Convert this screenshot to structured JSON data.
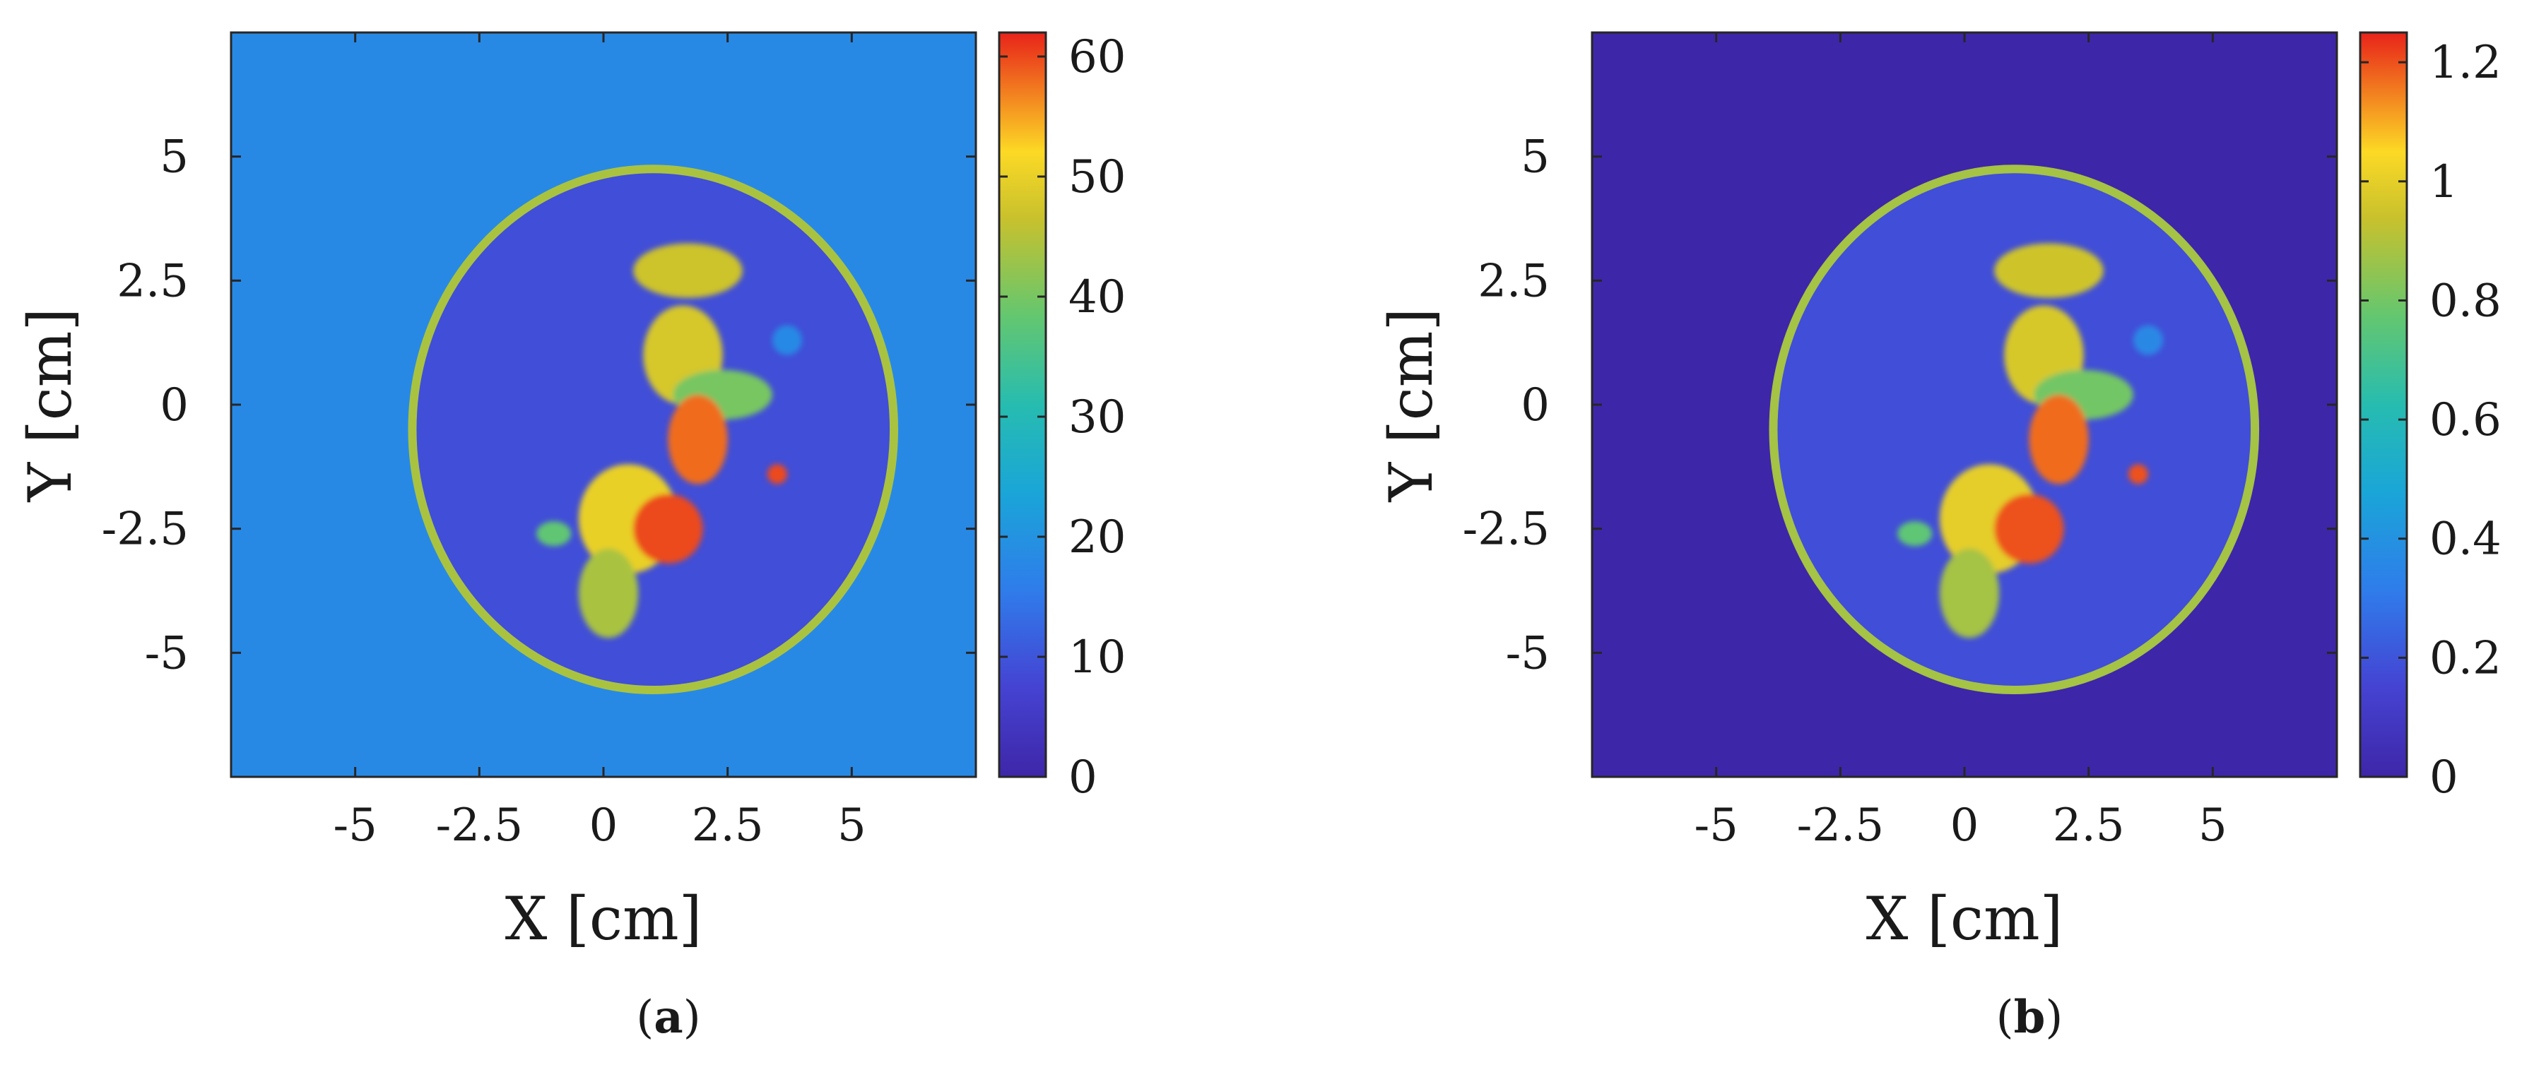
{
  "figure": {
    "panels": [
      {
        "label_open": "(",
        "label_letter": "a",
        "label_close": ")"
      },
      {
        "label_open": "(",
        "label_letter": "b",
        "label_close": ")"
      }
    ]
  },
  "chart_data": [
    {
      "type": "heatmap",
      "title": "",
      "xlabel": "X [cm]",
      "ylabel": "Y [cm]",
      "xlim": [
        -7.5,
        7.5
      ],
      "ylim": [
        -7.5,
        7.5
      ],
      "xticks": [
        -5,
        -2.5,
        0,
        2.5,
        5
      ],
      "xtick_labels": [
        "-5",
        "-2.5",
        "0",
        "2.5",
        "5"
      ],
      "yticks": [
        5,
        2.5,
        0,
        -2.5,
        -5
      ],
      "ytick_labels": [
        "5",
        "2.5",
        "0",
        "-2.5",
        "-5"
      ],
      "colormap": "parula",
      "background_value": 18,
      "colorbar": {
        "range": [
          0,
          62
        ],
        "ticks": [
          0,
          10,
          20,
          30,
          40,
          50,
          60
        ],
        "tick_labels": [
          "0",
          "10",
          "20",
          "30",
          "40",
          "50",
          "60"
        ]
      },
      "structures": {
        "ring": {
          "cx": 1.0,
          "cy": -0.5,
          "rx": 4.85,
          "ry": 5.25,
          "value": 44
        },
        "interior_value": 9,
        "blobs": [
          {
            "x": 1.7,
            "y": 2.7,
            "rx": 1.1,
            "ry": 0.55,
            "value": 47
          },
          {
            "x": 1.6,
            "y": 1.0,
            "rx": 0.8,
            "ry": 1.0,
            "value": 48
          },
          {
            "x": 2.4,
            "y": 0.2,
            "rx": 1.0,
            "ry": 0.5,
            "value": 40
          },
          {
            "x": 1.9,
            "y": -0.7,
            "rx": 0.6,
            "ry": 0.9,
            "value": 58
          },
          {
            "x": 0.5,
            "y": -2.3,
            "rx": 1.0,
            "ry": 1.1,
            "value": 50
          },
          {
            "x": 1.3,
            "y": -2.5,
            "rx": 0.7,
            "ry": 0.7,
            "value": 60
          },
          {
            "x": 0.1,
            "y": -3.8,
            "rx": 0.6,
            "ry": 0.9,
            "value": 44
          },
          {
            "x": -1.0,
            "y": -2.6,
            "rx": 0.35,
            "ry": 0.25,
            "value": 38
          },
          {
            "x": 3.5,
            "y": -1.4,
            "rx": 0.2,
            "ry": 0.2,
            "value": 60
          },
          {
            "x": 3.7,
            "y": 1.3,
            "rx": 0.3,
            "ry": 0.3,
            "value": 18
          }
        ]
      }
    },
    {
      "type": "heatmap",
      "title": "",
      "xlabel": "X [cm]",
      "ylabel": "Y [cm]",
      "xlim": [
        -7.5,
        7.5
      ],
      "ylim": [
        -7.5,
        7.5
      ],
      "xticks": [
        -5,
        -2.5,
        0,
        2.5,
        5
      ],
      "xtick_labels": [
        "-5",
        "-2.5",
        "0",
        "2.5",
        "5"
      ],
      "yticks": [
        5,
        2.5,
        0,
        -2.5,
        -5
      ],
      "ytick_labels": [
        "5",
        "2.5",
        "0",
        "-2.5",
        "-5"
      ],
      "colormap": "parula",
      "background_value": 0,
      "colorbar": {
        "range": [
          0,
          1.25
        ],
        "ticks": [
          0,
          0.2,
          0.4,
          0.6,
          0.8,
          1,
          1.2
        ],
        "tick_labels": [
          "0",
          "0.2",
          "0.4",
          "0.6",
          "0.8",
          "1",
          "1.2"
        ]
      },
      "structures": {
        "ring": {
          "cx": 1.0,
          "cy": -0.5,
          "rx": 4.85,
          "ry": 5.25,
          "value": 0.88
        },
        "interior_value": 0.18,
        "blobs": [
          {
            "x": 1.7,
            "y": 2.7,
            "rx": 1.1,
            "ry": 0.55,
            "value": 0.95
          },
          {
            "x": 1.6,
            "y": 1.0,
            "rx": 0.8,
            "ry": 1.0,
            "value": 0.97
          },
          {
            "x": 2.4,
            "y": 0.2,
            "rx": 1.0,
            "ry": 0.5,
            "value": 0.8
          },
          {
            "x": 1.9,
            "y": -0.7,
            "rx": 0.6,
            "ry": 0.9,
            "value": 1.17
          },
          {
            "x": 0.5,
            "y": -2.3,
            "rx": 1.0,
            "ry": 1.1,
            "value": 1.0
          },
          {
            "x": 1.3,
            "y": -2.5,
            "rx": 0.7,
            "ry": 0.7,
            "value": 1.2
          },
          {
            "x": 0.1,
            "y": -3.8,
            "rx": 0.6,
            "ry": 0.9,
            "value": 0.88
          },
          {
            "x": -1.0,
            "y": -2.6,
            "rx": 0.35,
            "ry": 0.25,
            "value": 0.76
          },
          {
            "x": 3.5,
            "y": -1.4,
            "rx": 0.2,
            "ry": 0.2,
            "value": 1.2
          },
          {
            "x": 3.7,
            "y": 1.3,
            "rx": 0.3,
            "ry": 0.3,
            "value": 0.36
          }
        ]
      }
    }
  ]
}
